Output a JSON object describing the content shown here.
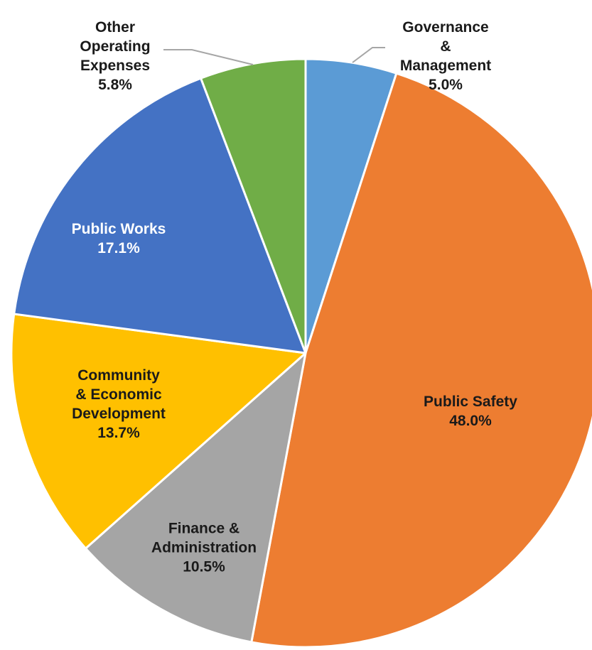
{
  "chart_data": {
    "type": "pie",
    "start_angle_deg": 0,
    "direction": "clockwise",
    "slices": [
      {
        "label_lines": [
          "Governance",
          "&",
          "Management"
        ],
        "value": 5.0,
        "pct": "5.0%",
        "color": "#5B9BD5",
        "text_color": "#1a1a1a"
      },
      {
        "label_lines": [
          "Public Safety"
        ],
        "value": 48.0,
        "pct": "48.0%",
        "color": "#ED7D31",
        "text_color": "#1a1a1a"
      },
      {
        "label_lines": [
          "Finance &",
          "Administration"
        ],
        "value": 10.5,
        "pct": "10.5%",
        "color": "#A5A5A5",
        "text_color": "#1a1a1a"
      },
      {
        "label_lines": [
          "Community",
          "& Economic",
          "Development"
        ],
        "value": 13.7,
        "pct": "13.7%",
        "color": "#FFC000",
        "text_color": "#1a1a1a"
      },
      {
        "label_lines": [
          "Public Works"
        ],
        "value": 17.1,
        "pct": "17.1%",
        "color": "#4472C4",
        "text_color": "#ffffff"
      },
      {
        "label_lines": [
          "Other",
          "Operating",
          "Expenses"
        ],
        "value": 5.8,
        "pct": "5.8%",
        "color": "#70AD47",
        "text_color": "#1a1a1a"
      }
    ]
  }
}
